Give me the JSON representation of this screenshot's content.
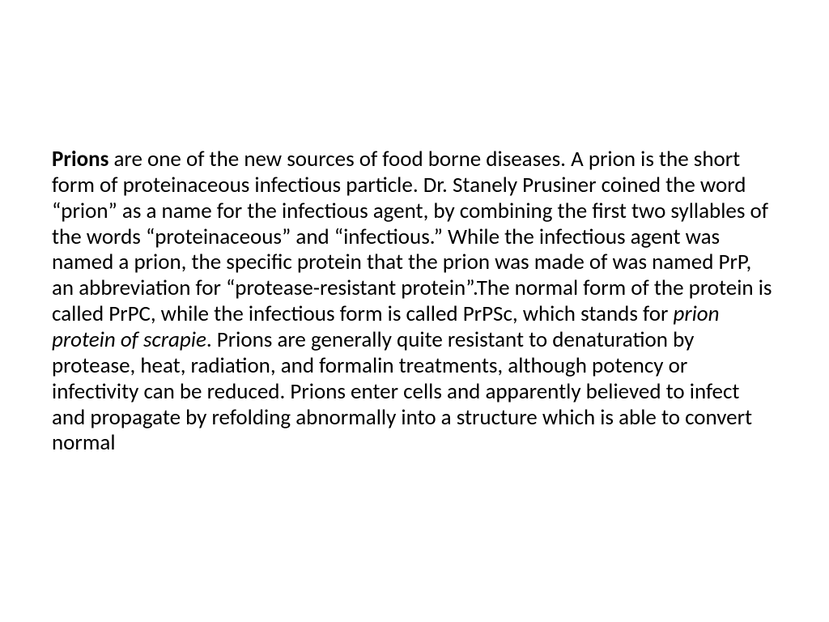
{
  "slide": {
    "text_color": "#000000",
    "background_color": "#ffffff",
    "font_family": "Calibri",
    "font_size_pt": 20,
    "paragraph": {
      "bold_lead": "Prions",
      "part1": " are one of the new sources of food borne diseases. A prion is the short form of proteinaceous infectious particle. Dr. Stanely Prusiner coined the word “prion” as a name for the infectious agent, by combining the first two syllables of the words “proteinaceous” and “infectious.” While the infectious agent was named a prion, the specific protein that the prion was made of was named PrP, an abbreviation for “protease-resistant protein”.The normal form of the protein is called PrPC, while the infectious form is called PrPSc, which stands for ",
      "italic_phrase": "prion protein of scrapie",
      "part2": ". Prions are generally quite resistant to denaturation by protease, heat, radiation, and formalin treatments, although potency or infectivity can be reduced. Prions enter cells and apparently believed to infect and propagate by refolding abnormally into a structure which is able to convert normal"
    }
  }
}
